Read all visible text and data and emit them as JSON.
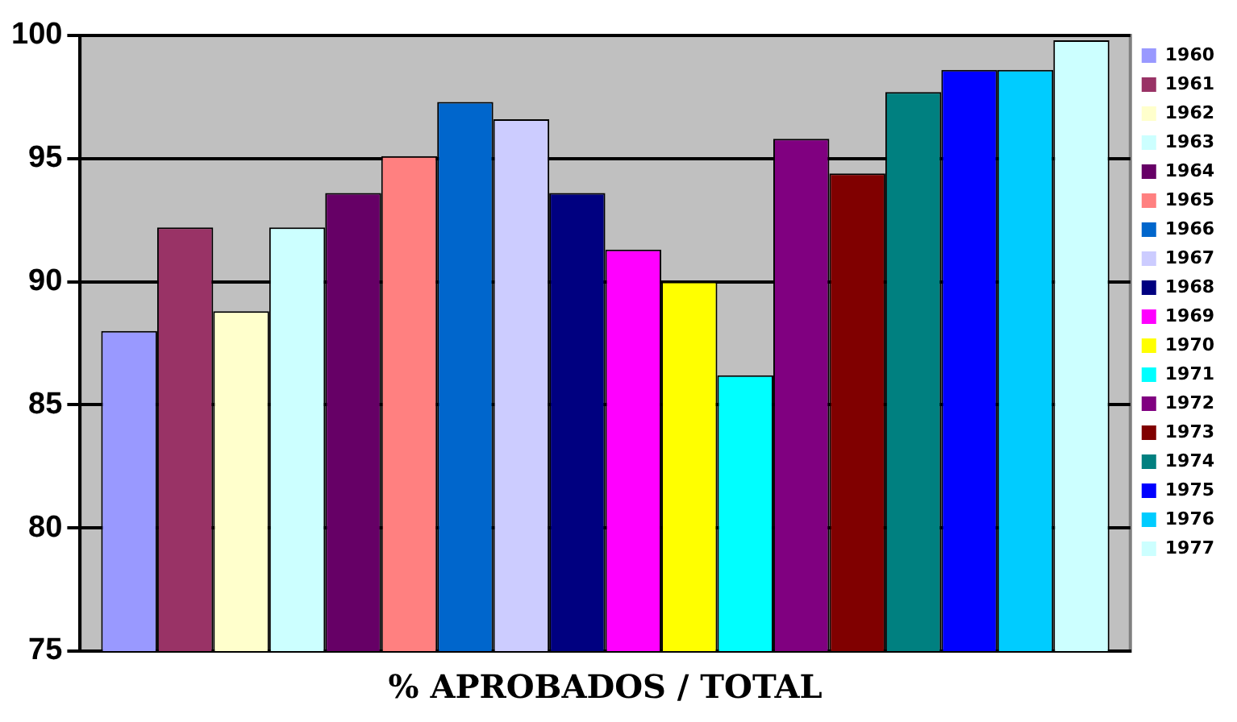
{
  "chart_data": {
    "type": "bar",
    "xlabel": "% APROBADOS / TOTAL",
    "categories": [
      null
    ],
    "series": [
      {
        "name": "1960",
        "color": "#9999ff",
        "values": [
          88.0
        ]
      },
      {
        "name": "1961",
        "color": "#993366",
        "values": [
          92.2
        ]
      },
      {
        "name": "1962",
        "color": "#ffffcc",
        "values": [
          88.8
        ]
      },
      {
        "name": "1963",
        "color": "#ccffff",
        "values": [
          92.2
        ]
      },
      {
        "name": "1964",
        "color": "#660066",
        "values": [
          93.6
        ]
      },
      {
        "name": "1965",
        "color": "#ff8080",
        "values": [
          95.1
        ]
      },
      {
        "name": "1966",
        "color": "#0066cc",
        "values": [
          97.3
        ]
      },
      {
        "name": "1967",
        "color": "#ccccff",
        "values": [
          96.6
        ]
      },
      {
        "name": "1968",
        "color": "#000080",
        "values": [
          93.6
        ]
      },
      {
        "name": "1969",
        "color": "#ff00ff",
        "values": [
          91.3
        ]
      },
      {
        "name": "1970",
        "color": "#ffff00",
        "values": [
          90.0
        ]
      },
      {
        "name": "1971",
        "color": "#00ffff",
        "values": [
          86.2
        ]
      },
      {
        "name": "1972",
        "color": "#800080",
        "values": [
          95.8
        ]
      },
      {
        "name": "1973",
        "color": "#800000",
        "values": [
          94.4
        ]
      },
      {
        "name": "1974",
        "color": "#008080",
        "values": [
          97.7
        ]
      },
      {
        "name": "1975",
        "color": "#0000ff",
        "values": [
          98.6
        ]
      },
      {
        "name": "1976",
        "color": "#00ccff",
        "values": [
          98.6
        ]
      },
      {
        "name": "1977",
        "color": "#ccffff",
        "values": [
          99.8
        ]
      }
    ],
    "ylim": [
      75,
      100
    ],
    "yticks": [
      75,
      80,
      85,
      90,
      95,
      100
    ],
    "grid": "y",
    "legend": "right"
  }
}
